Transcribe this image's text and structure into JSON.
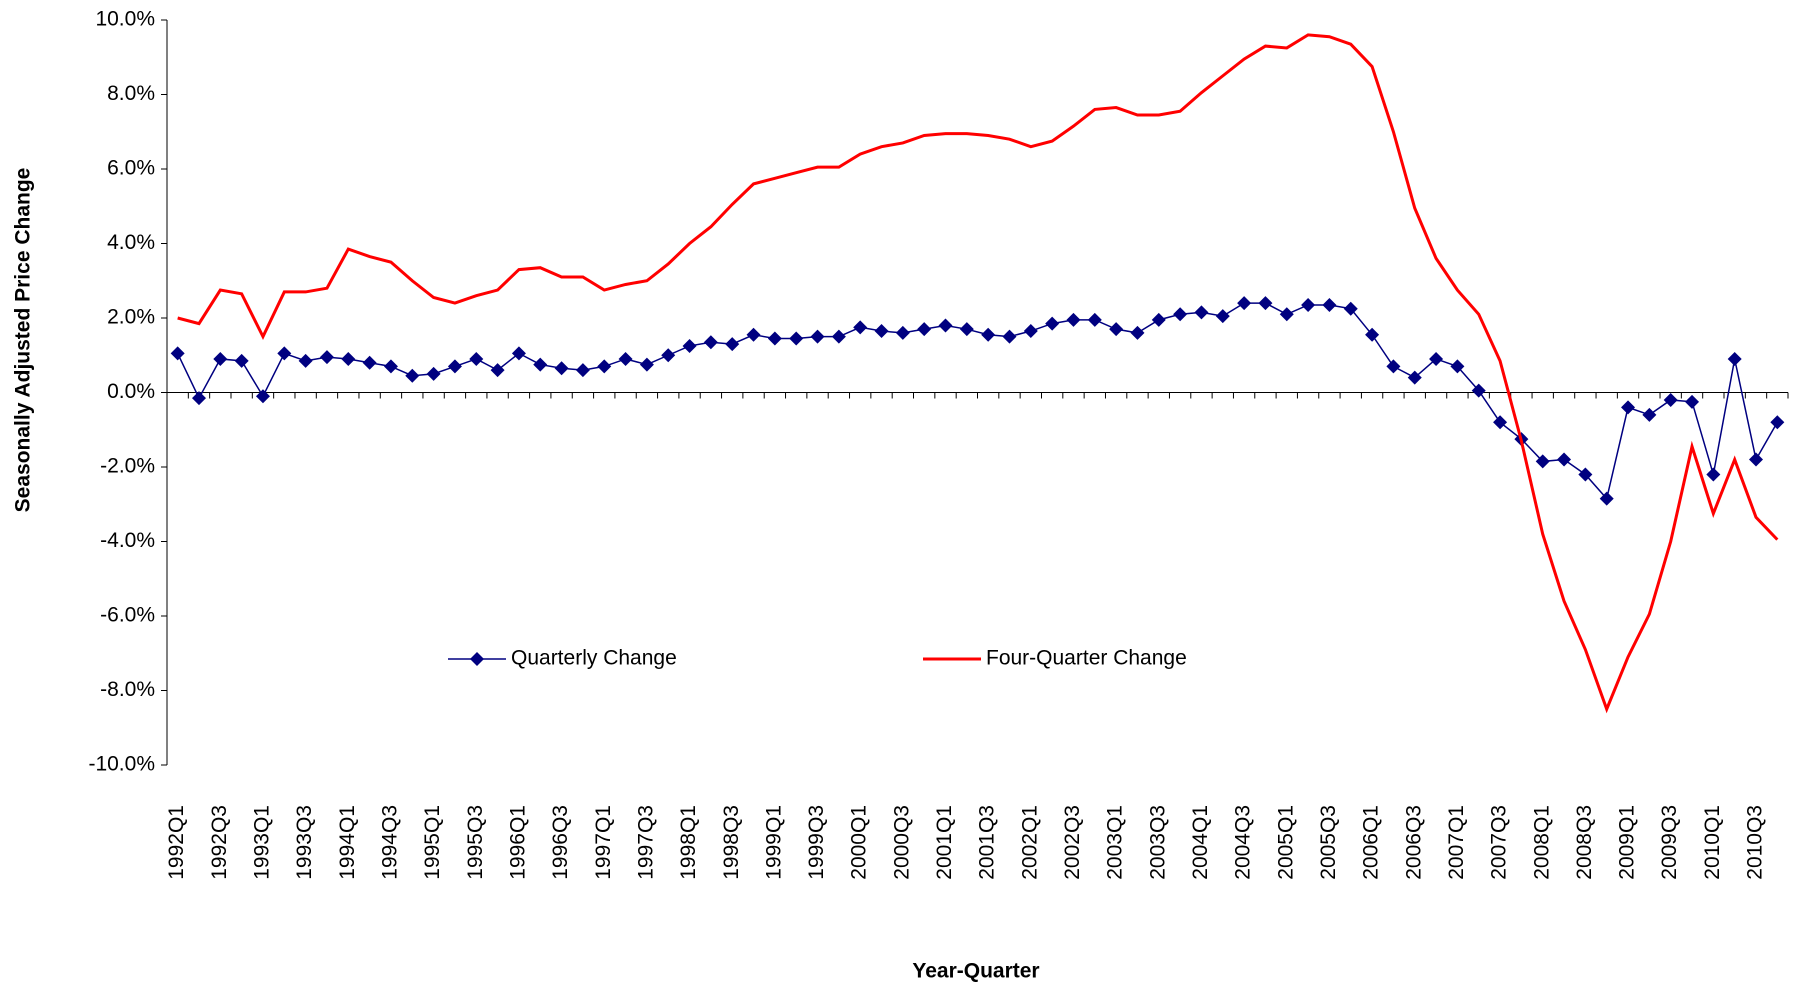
{
  "chart_data": {
    "type": "line",
    "x_label": "Year-Quarter",
    "y_label": "Seasonally Adjusted Price Change",
    "categories": [
      "1992Q1",
      null,
      "1992Q3",
      null,
      "1993Q1",
      null,
      "1993Q3",
      null,
      "1994Q1",
      null,
      "1994Q3",
      null,
      "1995Q1",
      null,
      "1995Q3",
      null,
      "1996Q1",
      null,
      "1996Q3",
      null,
      "1997Q1",
      null,
      "1997Q3",
      null,
      "1998Q1",
      null,
      "1998Q3",
      null,
      "1999Q1",
      null,
      "1999Q3",
      null,
      "2000Q1",
      null,
      "2000Q3",
      null,
      "2001Q1",
      null,
      "2001Q3",
      null,
      "2002Q1",
      null,
      "2002Q3",
      null,
      "2003Q1",
      null,
      "2003Q3",
      null,
      "2004Q1",
      null,
      "2004Q3",
      null,
      "2005Q1",
      null,
      "2005Q3",
      null,
      "2006Q1",
      null,
      "2006Q3",
      null,
      "2007Q1",
      null,
      "2007Q3",
      null,
      "2008Q1",
      null,
      "2008Q3",
      null,
      "2009Q1",
      null,
      "2009Q3",
      null,
      "2010Q1",
      null,
      "2010Q3",
      null
    ],
    "series": [
      {
        "name": "Quarterly Change",
        "color": "#000080",
        "marker": "diamond",
        "values": [
          1.05,
          -0.15,
          0.9,
          0.85,
          -0.1,
          1.05,
          0.85,
          0.95,
          0.9,
          0.8,
          0.7,
          0.45,
          0.5,
          0.7,
          0.9,
          0.6,
          1.05,
          0.75,
          0.65,
          0.6,
          0.7,
          0.9,
          0.75,
          1.0,
          1.25,
          1.35,
          1.3,
          1.55,
          1.45,
          1.45,
          1.5,
          1.5,
          1.75,
          1.65,
          1.6,
          1.7,
          1.8,
          1.7,
          1.55,
          1.5,
          1.65,
          1.85,
          1.95,
          1.95,
          1.7,
          1.6,
          1.95,
          2.1,
          2.15,
          2.05,
          2.4,
          2.4,
          2.1,
          2.35,
          2.35,
          2.25,
          1.55,
          0.7,
          0.4,
          0.9,
          0.7,
          0.05,
          -0.8,
          -1.25,
          -1.85,
          -1.8,
          -2.2,
          -2.85,
          -0.4,
          -0.6,
          -0.2,
          -0.25,
          -2.2,
          0.9,
          -1.8,
          -0.8
        ]
      },
      {
        "name": "Four-Quarter Change",
        "color": "#ff0000",
        "values": [
          2.0,
          1.85,
          2.75,
          2.65,
          1.5,
          2.7,
          2.7,
          2.8,
          3.85,
          3.65,
          3.5,
          3.0,
          2.55,
          2.4,
          2.6,
          2.75,
          3.3,
          3.35,
          3.1,
          3.1,
          2.75,
          2.9,
          3.0,
          3.45,
          4.0,
          4.45,
          5.05,
          5.6,
          5.75,
          5.9,
          6.05,
          6.05,
          6.4,
          6.6,
          6.7,
          6.9,
          6.95,
          6.95,
          6.9,
          6.8,
          6.6,
          6.75,
          7.15,
          7.6,
          7.65,
          7.45,
          7.45,
          7.55,
          8.05,
          8.5,
          8.95,
          9.3,
          9.25,
          9.6,
          9.55,
          9.35,
          8.75,
          7.0,
          4.95,
          3.6,
          2.75,
          2.1,
          0.85,
          -1.3,
          -3.8,
          -5.6,
          -6.9,
          -8.5,
          -7.1,
          -5.95,
          -4.0,
          -1.45,
          -3.25,
          -1.8,
          -3.35,
          -3.95
        ]
      }
    ],
    "ylim": [
      -10,
      10
    ],
    "yticks": [
      {
        "value": -10,
        "label": "-10.0%"
      },
      {
        "value": -8,
        "label": "-8.0%"
      },
      {
        "value": -6,
        "label": "-6.0%"
      },
      {
        "value": -4,
        "label": "-4.0%"
      },
      {
        "value": -2,
        "label": "-2.0%"
      },
      {
        "value": 0,
        "label": "0.0%"
      },
      {
        "value": 2,
        "label": "2.0%"
      },
      {
        "value": 4,
        "label": "4.0%"
      },
      {
        "value": 6,
        "label": "6.0%"
      },
      {
        "value": 8,
        "label": "8.0%"
      },
      {
        "value": 10,
        "label": "10.0%"
      }
    ],
    "grid": false,
    "legend": "center"
  }
}
